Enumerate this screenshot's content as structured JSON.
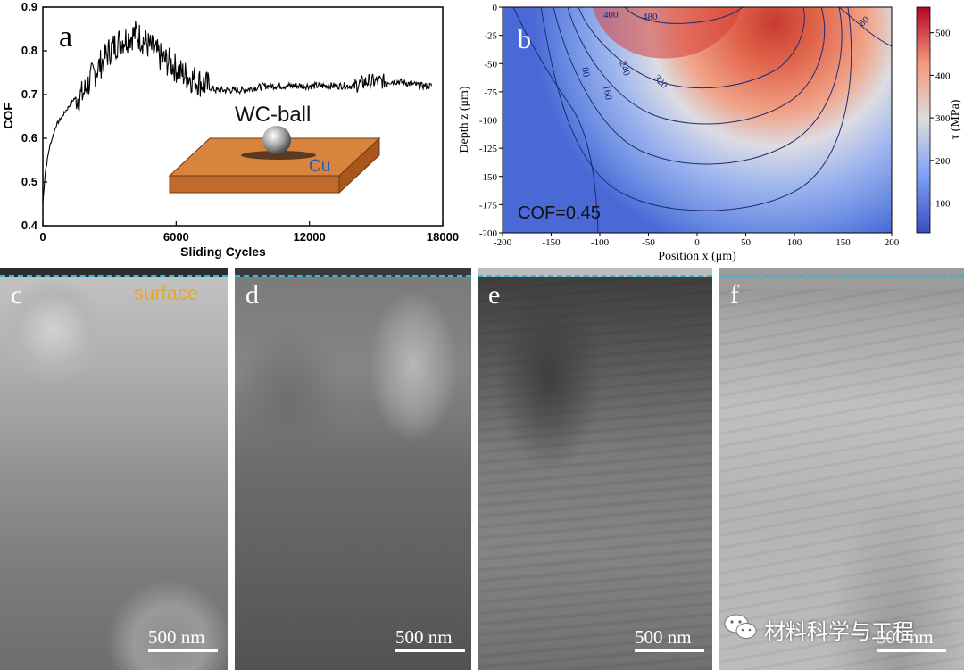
{
  "chart_data": [
    {
      "panel": "a",
      "type": "line",
      "xlabel": "Sliding Cycles",
      "ylabel": "COF",
      "xlim": [
        0,
        18000
      ],
      "ylim": [
        0.4,
        0.9
      ],
      "xticks": [
        0,
        6000,
        12000,
        18000
      ],
      "yticks": [
        0.4,
        0.5,
        0.6,
        0.7,
        0.8,
        0.9
      ],
      "x": [
        0,
        100,
        300,
        600,
        1000,
        1400,
        1800,
        2200,
        2600,
        3000,
        3400,
        3800,
        4200,
        4600,
        5000,
        5400,
        5800,
        6200,
        6600,
        7000,
        7400,
        7800,
        8200,
        8600,
        9000,
        10000,
        11000,
        12000,
        13000,
        14000,
        14600,
        15000,
        16000,
        17000,
        17500
      ],
      "y": [
        0.45,
        0.52,
        0.58,
        0.63,
        0.66,
        0.69,
        0.7,
        0.74,
        0.77,
        0.8,
        0.82,
        0.83,
        0.84,
        0.82,
        0.8,
        0.78,
        0.77,
        0.75,
        0.74,
        0.73,
        0.72,
        0.71,
        0.71,
        0.71,
        0.71,
        0.72,
        0.72,
        0.72,
        0.72,
        0.72,
        0.73,
        0.73,
        0.73,
        0.72,
        0.72
      ],
      "inset": {
        "ball_label": "WC-ball",
        "substrate_label": "Cu"
      }
    },
    {
      "panel": "b",
      "type": "heatmap",
      "xlabel": "Position x (μm)",
      "ylabel": "Depth z (μm)",
      "colorbar_label": "τ (MPa)",
      "xlim": [
        -200,
        200
      ],
      "ylim": [
        -200,
        0
      ],
      "xticks": [
        -200,
        -150,
        -100,
        -50,
        0,
        50,
        100,
        150,
        200
      ],
      "yticks": [
        0,
        -25,
        -50,
        -75,
        -100,
        -125,
        -150,
        -175,
        -200
      ],
      "colorbar_ticks": [
        100,
        200,
        300,
        400,
        500
      ],
      "colorbar_range": [
        30,
        560
      ],
      "contour_levels": [
        80,
        160,
        240,
        320,
        400,
        480
      ],
      "contour_labels": [
        "480",
        "400",
        "80",
        "240",
        "320",
        "160",
        "80",
        "80"
      ],
      "annotation": "COF=0.45",
      "max_location": {
        "x": 40,
        "z": -40,
        "tau": 560
      }
    }
  ],
  "panels": {
    "a_label": "a",
    "b_label": "b",
    "c_label": "c",
    "d_label": "d",
    "e_label": "e",
    "f_label": "f"
  },
  "tem": {
    "surface_label": "surface",
    "scalebar": "500 nm"
  },
  "watermark": "材料科学与工程",
  "colors": {
    "heat_low": "#3b5bd6",
    "heat_mid": "#dcdde3",
    "heat_high": "#b41f24",
    "contour": "#1f2d6e",
    "cu_block": "#d8843f",
    "surface_text": "#e9a72a",
    "dash_line": "#37b8d6"
  }
}
